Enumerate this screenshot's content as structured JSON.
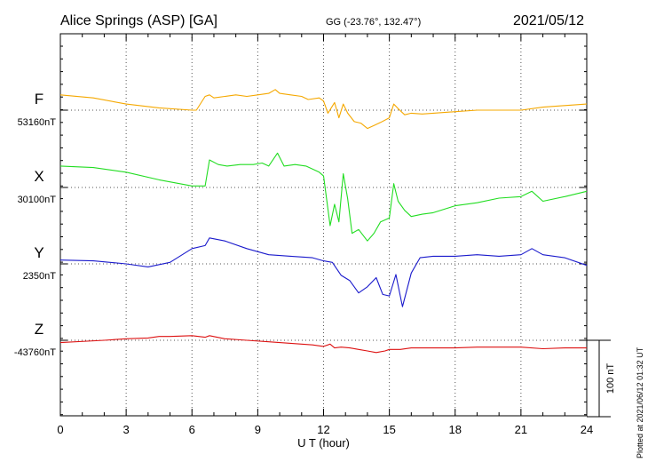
{
  "header": {
    "station": "Alice Springs (ASP)  [GA]",
    "coords": "GG (-23.76°, 132.47°)",
    "date": "2021/05/12"
  },
  "footer": {
    "plotted": "Plotted at 2021/06/12 01:32 UT",
    "scale": "100 nT"
  },
  "chart_data": {
    "type": "line",
    "xlabel": "U T (hour)",
    "xlim": [
      0,
      24
    ],
    "x_ticks": [
      0,
      3,
      6,
      9,
      12,
      15,
      18,
      21,
      24
    ],
    "scale_bar_nT": 100,
    "grid": true,
    "panels": [
      {
        "name": "F",
        "baseline": "53160nT",
        "color": "#f5a800",
        "x": [
          0,
          1.5,
          3,
          4.5,
          6,
          6.2,
          6.6,
          6.8,
          7,
          7.5,
          8,
          8.5,
          9,
          9.5,
          9.8,
          10,
          10.5,
          11,
          11.3,
          11.8,
          12,
          12.2,
          12.5,
          12.7,
          12.9,
          13.1,
          13.4,
          13.7,
          14,
          14.3,
          14.6,
          15,
          15.2,
          15.4,
          15.7,
          16,
          16.5,
          17,
          18,
          19,
          20,
          21,
          22,
          23,
          24
        ],
        "values": [
          20,
          16,
          8,
          3,
          0,
          0,
          18,
          20,
          16,
          18,
          20,
          18,
          20,
          22,
          27,
          22,
          20,
          18,
          14,
          16,
          12,
          -4,
          10,
          -10,
          8,
          -4,
          -15,
          -17,
          -24,
          -20,
          -16,
          -10,
          8,
          2,
          -6,
          -4,
          -5,
          -4,
          -2,
          0,
          0,
          0,
          4,
          6,
          8
        ]
      },
      {
        "name": "X",
        "baseline": "30100nT",
        "color": "#22dd22",
        "x": [
          0,
          1.5,
          3,
          4.5,
          6,
          6.6,
          6.8,
          7.2,
          7.6,
          8.2,
          8.8,
          9.2,
          9.5,
          9.9,
          10.2,
          10.7,
          11.2,
          11.8,
          12,
          12.3,
          12.5,
          12.7,
          12.9,
          13.1,
          13.3,
          13.6,
          14,
          14.3,
          14.6,
          15,
          15.2,
          15.4,
          15.7,
          16,
          16.5,
          17,
          18,
          19,
          20,
          21,
          21.5,
          22,
          23,
          24
        ],
        "values": [
          28,
          26,
          20,
          10,
          2,
          2,
          36,
          30,
          28,
          30,
          30,
          32,
          28,
          45,
          28,
          30,
          28,
          20,
          15,
          -50,
          -22,
          -45,
          18,
          -15,
          -60,
          -55,
          -70,
          -60,
          -45,
          -40,
          5,
          -18,
          -30,
          -38,
          -35,
          -33,
          -24,
          -20,
          -14,
          -12,
          -5,
          -18,
          -12,
          -5
        ]
      },
      {
        "name": "Y",
        "baseline": "2350nT",
        "color": "#1a1acc",
        "x": [
          0,
          1.5,
          3,
          4,
          5,
          6,
          6.6,
          6.8,
          7.5,
          8.5,
          9.5,
          10.5,
          11.5,
          12,
          12.4,
          12.8,
          13.2,
          13.6,
          14,
          14.4,
          14.7,
          15,
          15.3,
          15.6,
          16,
          16.4,
          17,
          18,
          19,
          20,
          21,
          21.5,
          22,
          23,
          24
        ],
        "values": [
          5,
          4,
          0,
          -4,
          2,
          20,
          24,
          34,
          30,
          20,
          12,
          10,
          8,
          4,
          2,
          -15,
          -22,
          -38,
          -30,
          -18,
          -40,
          -42,
          -14,
          -56,
          -12,
          8,
          10,
          10,
          12,
          10,
          12,
          20,
          12,
          8,
          -2
        ]
      },
      {
        "name": "Z",
        "baseline": "-43760nT",
        "color": "#dd1111",
        "x": [
          0,
          2,
          3,
          4,
          4.5,
          5,
          6,
          6.6,
          6.8,
          7.5,
          8.5,
          9.5,
          10.5,
          11.5,
          12,
          12.3,
          12.5,
          12.8,
          13.2,
          13.6,
          14,
          14.4,
          14.8,
          15,
          15.5,
          16,
          17,
          18,
          19,
          20,
          21,
          22,
          23,
          24
        ],
        "values": [
          -3,
          0,
          2,
          3,
          5,
          5,
          6,
          4,
          6,
          2,
          0,
          -2,
          -4,
          -6,
          -8,
          -5,
          -10,
          -9,
          -10,
          -12,
          -14,
          -16,
          -14,
          -12,
          -12,
          -10,
          -10,
          -10,
          -9,
          -9,
          -9,
          -11,
          -10,
          -10
        ]
      }
    ]
  }
}
